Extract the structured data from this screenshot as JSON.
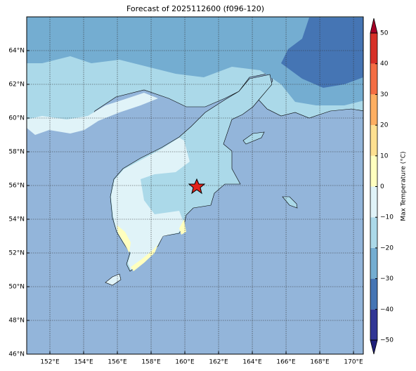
{
  "title": "Forecast of 2025112600 (f096-120)",
  "map": {
    "lon_range": [
      150.625,
      170.58
    ],
    "lat_range": [
      46,
      66
    ],
    "lon_ticks": [
      {
        "value": 152,
        "label": "152°E"
      },
      {
        "value": 154,
        "label": "154°E"
      },
      {
        "value": 156,
        "label": "156°E"
      },
      {
        "value": 158,
        "label": "158°E"
      },
      {
        "value": 160,
        "label": "160°E"
      },
      {
        "value": 162,
        "label": "162°E"
      },
      {
        "value": 164,
        "label": "164°E"
      },
      {
        "value": 166,
        "label": "166°E"
      },
      {
        "value": 168,
        "label": "168°E"
      },
      {
        "value": 170,
        "label": "170°E"
      }
    ],
    "lat_ticks": [
      {
        "value": 46,
        "label": "46°N"
      },
      {
        "value": 48,
        "label": "48°N"
      },
      {
        "value": 50,
        "label": "50°N"
      },
      {
        "value": 52,
        "label": "52°N"
      },
      {
        "value": 54,
        "label": "54°N"
      },
      {
        "value": 56,
        "label": "56°N"
      },
      {
        "value": 58,
        "label": "58°N"
      },
      {
        "value": 60,
        "label": "60°N"
      },
      {
        "value": 62,
        "label": "62°N"
      },
      {
        "value": 64,
        "label": "64°N"
      }
    ],
    "grid": true
  },
  "colorbar": {
    "label": "Max Temperature (°C)",
    "range": [
      -50,
      50
    ],
    "ticks": [
      {
        "value": -50,
        "label": "−50"
      },
      {
        "value": -40,
        "label": "−40"
      },
      {
        "value": -30,
        "label": "−30"
      },
      {
        "value": -20,
        "label": "−20"
      },
      {
        "value": -10,
        "label": "−10"
      },
      0,
      10,
      20,
      30,
      40,
      50
    ],
    "colors": [
      "#313695",
      "#4575b4",
      "#74add1",
      "#abd9e9",
      "#e0f3f8",
      "#ffffbf",
      "#fee090",
      "#fdae61",
      "#f46d43",
      "#d73027"
    ],
    "extend_colors": [
      "#1f1f7a",
      "#a50026"
    ]
  }
}
